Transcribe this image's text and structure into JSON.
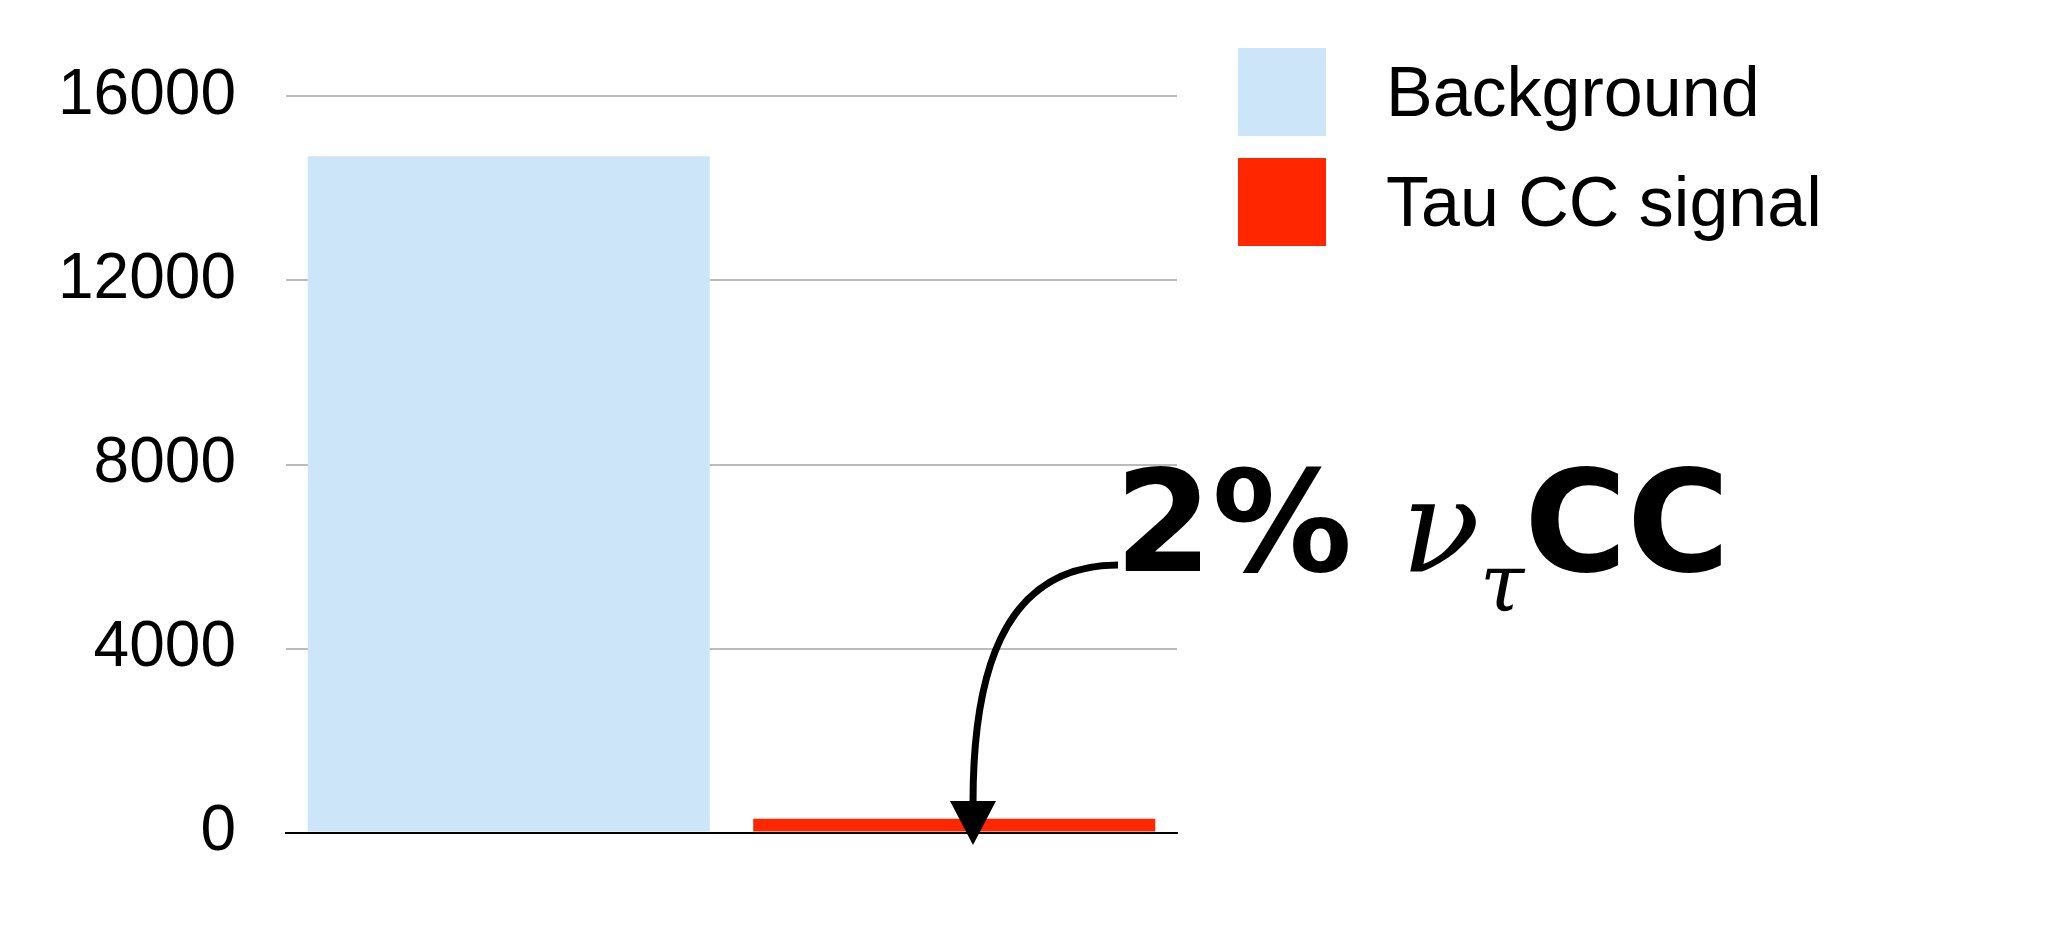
{
  "chart_data": {
    "type": "bar",
    "categories": [
      null,
      null
    ],
    "series": [
      {
        "name": "Background",
        "color": "#cce5f8",
        "values": [
          14700,
          null
        ]
      },
      {
        "name": "Tau CC signal",
        "color": "#ff2600",
        "values": [
          null,
          300
        ]
      }
    ],
    "ylim": [
      0,
      16000
    ],
    "yticks": [
      0,
      4000,
      8000,
      12000,
      16000
    ],
    "grid": "y",
    "legend": "top right",
    "annotations": [
      "2% ν$_{τ}$CC"
    ]
  }
}
